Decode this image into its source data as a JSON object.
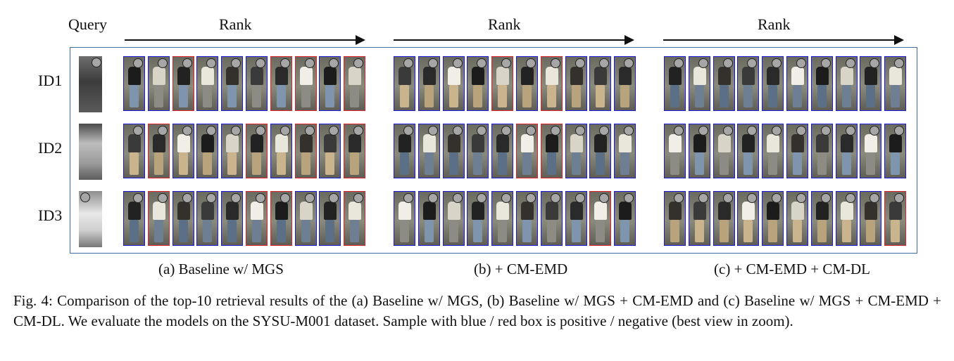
{
  "figure": {
    "query_label": "Query",
    "panels": [
      {
        "rank_label": "Rank",
        "subcaption": "(a) Baseline w/ MGS",
        "rows": [
          [
            "pos",
            "pos",
            "neg",
            "pos",
            "pos",
            "pos",
            "neg",
            "neg",
            "pos",
            "neg"
          ],
          [
            "pos",
            "neg",
            "pos",
            "pos",
            "pos",
            "neg",
            "pos",
            "neg",
            "pos",
            "neg"
          ],
          [
            "pos",
            "neg",
            "pos",
            "pos",
            "pos",
            "neg",
            "neg",
            "pos",
            "pos",
            "neg"
          ]
        ]
      },
      {
        "rank_label": "Rank",
        "subcaption": "(b) + CM-EMD",
        "rows": [
          [
            "pos",
            "pos",
            "pos",
            "pos",
            "neg",
            "pos",
            "neg",
            "pos",
            "pos",
            "pos"
          ],
          [
            "pos",
            "pos",
            "pos",
            "pos",
            "pos",
            "neg",
            "neg",
            "pos",
            "pos",
            "pos"
          ],
          [
            "pos",
            "pos",
            "pos",
            "pos",
            "pos",
            "pos",
            "pos",
            "pos",
            "neg",
            "pos"
          ]
        ]
      },
      {
        "rank_label": "Rank",
        "subcaption": "(c) + CM-EMD + CM-DL",
        "rows": [
          [
            "pos",
            "pos",
            "pos",
            "pos",
            "pos",
            "pos",
            "pos",
            "pos",
            "pos",
            "pos"
          ],
          [
            "pos",
            "pos",
            "pos",
            "pos",
            "pos",
            "pos",
            "pos",
            "pos",
            "pos",
            "pos"
          ],
          [
            "pos",
            "pos",
            "pos",
            "pos",
            "pos",
            "pos",
            "pos",
            "pos",
            "pos",
            "neg"
          ]
        ]
      }
    ],
    "ids": [
      "ID1",
      "ID2",
      "ID3"
    ],
    "colors": {
      "positive_box": "#1a1ad8",
      "negative_box": "#e0232a",
      "panel_border": "#3f6aa3"
    }
  },
  "caption": "Fig. 4: Comparison of the top-10 retrieval results of the (a) Baseline w/ MGS, (b) Baseline w/ MGS + CM-EMD and (c) Baseline w/ MGS + CM-EMD + CM-DL. We evaluate the models on the SYSU-M001 dataset. Sample with blue / red box is positive / negative (best view in zoom)."
}
